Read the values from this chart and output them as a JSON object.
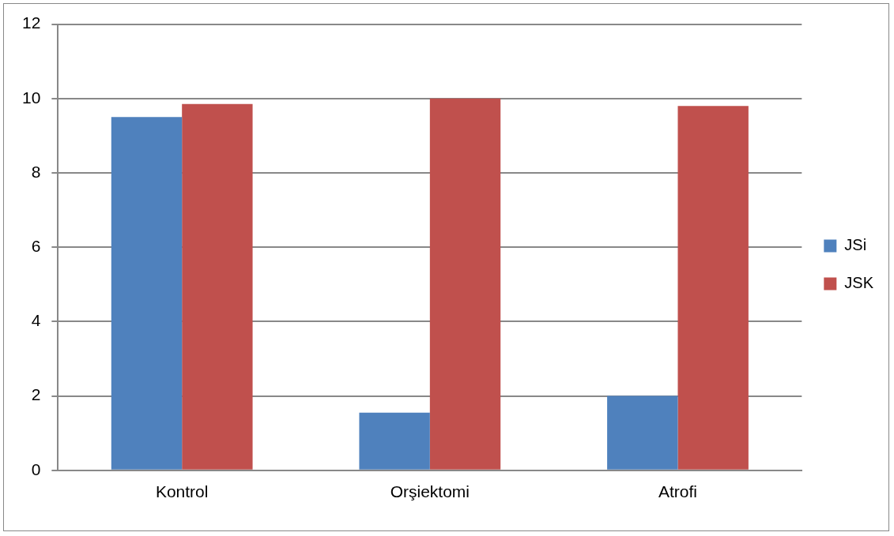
{
  "chart_data": {
    "type": "bar",
    "categories": [
      "Kontrol",
      "Orşiektomi",
      "Atrofi"
    ],
    "series": [
      {
        "name": "JSi",
        "color": "#4f81bd",
        "values": [
          9.5,
          1.55,
          2.0
        ]
      },
      {
        "name": "JSK",
        "color": "#c0504d",
        "values": [
          9.85,
          10.0,
          9.8
        ]
      }
    ],
    "ylim": [
      0,
      12
    ],
    "yticks": [
      0,
      2,
      4,
      6,
      8,
      10,
      12
    ],
    "grid": "y",
    "legend": "right"
  }
}
